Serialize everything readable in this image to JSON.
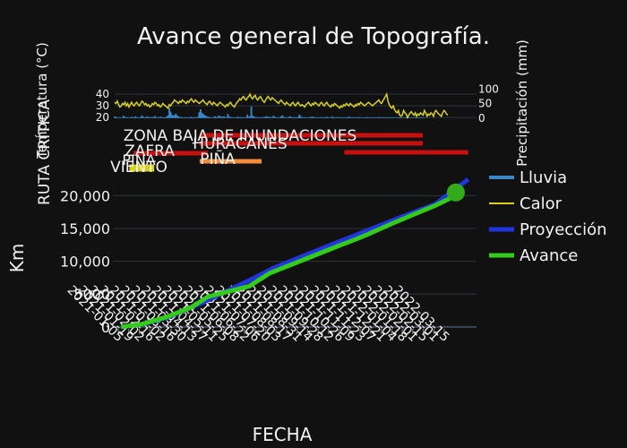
{
  "chart_data": [
    {
      "type": "line",
      "title": "Avance general de Topografía.",
      "ylabel": "Temperatura (°C)",
      "ylim": [
        17,
        47
      ],
      "yticks": [
        20,
        30,
        40
      ],
      "y2label": "Precipitación (mm)",
      "y2lim": [
        -10,
        110
      ],
      "y2ticks": [
        0,
        50,
        100
      ],
      "series": [
        {
          "name": "Lluvia",
          "axis": "y2",
          "color": "#3a86c8",
          "values": [
            5,
            4,
            2,
            2,
            1,
            1,
            1,
            8,
            2,
            3,
            1,
            1,
            2,
            4,
            3,
            2,
            6,
            1,
            2,
            1,
            3,
            9,
            4,
            2,
            1,
            6,
            2,
            3,
            1,
            4,
            2,
            7,
            3,
            1,
            2,
            5,
            1,
            3,
            2,
            1,
            6,
            9,
            35,
            22,
            12,
            8,
            10,
            15,
            9,
            6,
            4,
            3,
            2,
            1,
            2,
            3,
            1,
            2,
            3,
            4,
            2,
            1,
            3,
            2,
            4,
            20,
            30,
            18,
            14,
            10,
            8,
            5,
            4,
            3,
            2,
            1,
            3,
            6,
            4,
            2,
            9,
            6,
            4,
            5,
            6,
            3,
            2,
            14,
            5,
            4,
            2,
            1,
            1,
            2,
            3,
            4,
            2,
            3,
            1,
            2,
            2,
            3,
            12,
            4,
            6,
            40,
            8,
            5,
            4,
            2,
            3,
            1,
            2,
            3,
            2,
            4,
            5,
            6,
            3,
            4,
            3,
            2,
            8,
            4,
            2,
            1,
            1,
            2,
            6,
            9,
            3,
            2,
            1,
            2,
            4,
            6,
            2,
            3,
            1,
            3,
            2,
            4,
            12,
            6,
            2,
            3,
            2,
            1,
            1,
            2,
            3,
            4,
            5,
            2,
            3,
            2,
            1,
            1,
            2,
            3,
            2,
            2,
            3,
            4,
            2,
            1,
            2,
            5,
            3,
            2,
            1,
            2,
            3,
            1,
            2,
            2,
            1,
            2,
            1,
            3,
            5,
            2,
            1,
            2,
            1,
            2,
            2,
            1,
            3,
            2,
            1,
            1,
            1,
            2,
            3,
            1,
            2,
            2,
            1,
            1,
            2,
            1,
            2,
            3,
            1,
            1,
            2,
            1,
            1,
            2,
            1,
            1,
            2,
            1,
            2,
            1,
            1,
            1,
            2,
            1,
            2,
            1,
            1,
            1,
            2,
            1,
            1,
            1,
            2,
            1,
            1,
            1,
            1,
            1,
            2,
            1,
            1,
            1,
            1
          ]
        },
        {
          "name": "Calor",
          "axis": "y",
          "color": "#d9d21c",
          "values": [
            33,
            32,
            34,
            31,
            29,
            30,
            32,
            31,
            33,
            30,
            32,
            29,
            31,
            33,
            31,
            30,
            32,
            33,
            31,
            30,
            32,
            34,
            33,
            31,
            32,
            30,
            31,
            29,
            30,
            32,
            31,
            33,
            32,
            30,
            31,
            29,
            30,
            32,
            31,
            30,
            29,
            28,
            31,
            30,
            32,
            33,
            35,
            34,
            33,
            32,
            34,
            33,
            35,
            34,
            33,
            32,
            34,
            33,
            35,
            36,
            34,
            33,
            35,
            34,
            33,
            32,
            33,
            34,
            35,
            33,
            32,
            31,
            33,
            34,
            32,
            31,
            33,
            32,
            31,
            30,
            32,
            33,
            32,
            31,
            30,
            29,
            31,
            30,
            32,
            33,
            31,
            30,
            29,
            31,
            33,
            34,
            36,
            35,
            37,
            38,
            36,
            35,
            37,
            38,
            40,
            37,
            36,
            38,
            39,
            36,
            35,
            37,
            38,
            36,
            34,
            33,
            35,
            37,
            38,
            36,
            35,
            37,
            36,
            35,
            34,
            33,
            32,
            34,
            35,
            33,
            32,
            31,
            33,
            32,
            31,
            30,
            32,
            33,
            31,
            30,
            32,
            33,
            31,
            30,
            31,
            30,
            29,
            31,
            32,
            33,
            31,
            30,
            32,
            31,
            33,
            32,
            31,
            30,
            32,
            33,
            31,
            30,
            32,
            33,
            31,
            30,
            29,
            31,
            30,
            32,
            31,
            30,
            29,
            28,
            30,
            29,
            31,
            30,
            32,
            31,
            30,
            32,
            31,
            30,
            29,
            31,
            30,
            32,
            31,
            33,
            32,
            31,
            30,
            31,
            32,
            33,
            32,
            31,
            30,
            31,
            32,
            33,
            34,
            35,
            33,
            32,
            34,
            36,
            38,
            40,
            34,
            31,
            29,
            28,
            30,
            27,
            25,
            24,
            26,
            22,
            21,
            22,
            26,
            24,
            23,
            20,
            22,
            24,
            25,
            23,
            22,
            24,
            21,
            23,
            22,
            24,
            23,
            22,
            26,
            24,
            21,
            23,
            22,
            24,
            23,
            21,
            25,
            26,
            24,
            23,
            22,
            21,
            24,
            26,
            25,
            23,
            22
          ]
        }
      ]
    },
    {
      "type": "gantt",
      "ylabel": "RUTA CRÍTICA",
      "xlim": [
        -10,
        430
      ],
      "tasks": [
        {
          "label": "ZONA BAJA DE INUNDACIONES",
          "start": 95,
          "end": 365,
          "color": "#c81010"
        },
        {
          "label": "HURACANES",
          "start": 95,
          "end": 365,
          "color": "#c81010"
        },
        {
          "label": "",
          "start": 270,
          "end": 420,
          "color": "#c81010"
        },
        {
          "label": "ZAFRA",
          "start": 15,
          "end": 105,
          "color": "#c81010"
        },
        {
          "label": "PIÑA",
          "start": 95,
          "end": 170,
          "color": "#f08c3c"
        },
        {
          "label": "PIÑA",
          "start": 10,
          "end": 40,
          "color": "#d9d21c"
        },
        {
          "label": "VIENTO",
          "start": 10,
          "end": 40,
          "color": "#d9d21c"
        }
      ]
    },
    {
      "type": "line",
      "xlabel": "FECHA",
      "ylabel": "Km",
      "ylim": [
        -1800,
        23200
      ],
      "yticks": [
        0,
        5000,
        10000,
        15000,
        20000
      ],
      "ytick_labels": [
        "0",
        "5000",
        "10,000",
        "15,000",
        "20,000"
      ],
      "xlim": [
        -10,
        430
      ],
      "legend_position": "right",
      "legend": [
        "Lluvia",
        "Calor",
        "Proyección",
        "Avance"
      ],
      "date_ticks": [
        "2021-01-05",
        "2021-01-19",
        "2021-02-02",
        "2021-02-16",
        "2021-03-02",
        "2021-03-16",
        "2021-03-30",
        "2021-04-13",
        "2021-04-27",
        "2021-05-11",
        "2021-05-25",
        "2021-06-08",
        "2021-06-22",
        "2021-07-06",
        "2021-07-20",
        "2021-08-03",
        "2021-08-17",
        "2021-08-31",
        "2021-09-14",
        "2021-09-28",
        "2021-10-12",
        "2021-10-26",
        "2021-11-09",
        "2021-11-23",
        "2021-12-07",
        "2021-12-21",
        "2022-01-04",
        "2022-01-18",
        "2022-02-01",
        "2022-02-15",
        "2022-03-01",
        "2022-03-15"
      ],
      "series": [
        {
          "name": "Proyección",
          "color": "#2035e0",
          "points": [
            [
              0,
              0
            ],
            [
              25,
              400
            ],
            [
              55,
              1400
            ],
            [
              95,
              3500
            ],
            [
              120,
              5000
            ],
            [
              160,
              7400
            ],
            [
              185,
              9000
            ],
            [
              220,
              10800
            ],
            [
              260,
              12800
            ],
            [
              300,
              14800
            ],
            [
              340,
              16800
            ],
            [
              380,
              18700
            ],
            [
              420,
              22500
            ]
          ]
        },
        {
          "name": "Avance",
          "color": "#33cc1a",
          "points": [
            [
              0,
              0
            ],
            [
              25,
              400
            ],
            [
              55,
              1500
            ],
            [
              85,
              3000
            ],
            [
              105,
              4600
            ],
            [
              130,
              5400
            ],
            [
              155,
              6200
            ],
            [
              180,
              8200
            ],
            [
              200,
              9200
            ],
            [
              230,
              10700
            ],
            [
              260,
              12200
            ],
            [
              285,
              13400
            ],
            [
              300,
              14200
            ],
            [
              325,
              15600
            ],
            [
              355,
              17200
            ],
            [
              380,
              18500
            ],
            [
              395,
              19400
            ],
            [
              405,
              20100
            ],
            [
              410,
              20500
            ]
          ]
        }
      ],
      "marker": {
        "x": 405,
        "y": 20500,
        "color": "#33aa1a"
      }
    }
  ]
}
